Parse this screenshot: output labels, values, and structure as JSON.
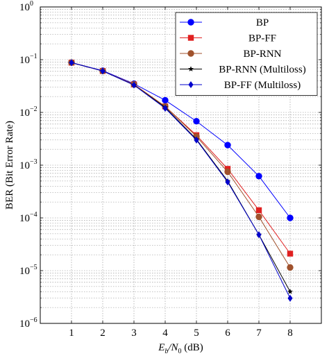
{
  "chart_data": {
    "type": "line",
    "title": "",
    "xlabel": {
      "main": "E",
      "sub1": "b",
      "mid": "/N",
      "sub2": "0",
      "tail": " (dB)"
    },
    "ylabel": "BER (Bit Error Rate)",
    "xlim": [
      0,
      9
    ],
    "ylim": [
      1e-06,
      1
    ],
    "yscale": "log",
    "grid": true,
    "legend_position": "top-right",
    "x_ticks": [
      "1",
      "2",
      "3",
      "4",
      "5",
      "6",
      "7",
      "8"
    ],
    "y_ticks": [
      {
        "base": "10",
        "exp": "0"
      },
      {
        "base": "10",
        "exp": "−1"
      },
      {
        "base": "10",
        "exp": "−2"
      },
      {
        "base": "10",
        "exp": "−3"
      },
      {
        "base": "10",
        "exp": "−4"
      },
      {
        "base": "10",
        "exp": "−5"
      },
      {
        "base": "10",
        "exp": "−6"
      }
    ],
    "x": [
      1,
      2,
      3,
      4,
      5,
      6,
      7,
      8
    ],
    "series": [
      {
        "name": "BP",
        "color": "#0000ff",
        "marker": "circle",
        "values": [
          0.088,
          0.062,
          0.035,
          0.017,
          0.0068,
          0.0024,
          0.00062,
          0.0001
        ]
      },
      {
        "name": "BP-FF",
        "color": "#e02020",
        "marker": "square",
        "values": [
          0.088,
          0.061,
          0.034,
          0.013,
          0.0037,
          0.00085,
          0.00014,
          2.1e-05
        ]
      },
      {
        "name": "BP-RNN",
        "color": "#a0522d",
        "marker": "circle",
        "values": [
          0.088,
          0.061,
          0.034,
          0.013,
          0.0035,
          0.00075,
          0.000105,
          1.15e-05
        ]
      },
      {
        "name": "BP-RNN (Multiloss)",
        "color": "#000000",
        "marker": "star",
        "values": [
          0.088,
          0.061,
          0.033,
          0.0125,
          0.0031,
          0.0005,
          4.8e-05,
          4e-06
        ]
      },
      {
        "name": "BP-FF (Multiloss)",
        "color": "#0000cc",
        "marker": "diamond",
        "values": [
          0.088,
          0.061,
          0.033,
          0.012,
          0.003,
          0.00048,
          4.8e-05,
          3e-06
        ]
      }
    ]
  }
}
